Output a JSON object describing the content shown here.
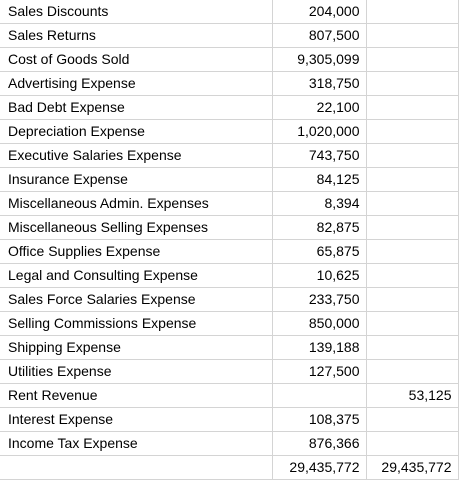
{
  "ledger": {
    "rows": [
      {
        "label": "Sales Discounts",
        "debit": "204,000",
        "credit": ""
      },
      {
        "label": "Sales Returns",
        "debit": "807,500",
        "credit": ""
      },
      {
        "label": "Cost of Goods Sold",
        "debit": "9,305,099",
        "credit": ""
      },
      {
        "label": "Advertising Expense",
        "debit": "318,750",
        "credit": ""
      },
      {
        "label": "Bad Debt Expense",
        "debit": "22,100",
        "credit": ""
      },
      {
        "label": "Depreciation Expense",
        "debit": "1,020,000",
        "credit": ""
      },
      {
        "label": "Executive Salaries Expense",
        "debit": "743,750",
        "credit": ""
      },
      {
        "label": "Insurance Expense",
        "debit": "84,125",
        "credit": ""
      },
      {
        "label": "Miscellaneous Admin. Expenses",
        "debit": "8,394",
        "credit": ""
      },
      {
        "label": "Miscellaneous Selling Expenses",
        "debit": "82,875",
        "credit": ""
      },
      {
        "label": "Office Supplies Expense",
        "debit": "65,875",
        "credit": ""
      },
      {
        "label": "Legal and Consulting Expense",
        "debit": "10,625",
        "credit": ""
      },
      {
        "label": "Sales Force Salaries Expense",
        "debit": "233,750",
        "credit": ""
      },
      {
        "label": "Selling Commissions Expense",
        "debit": "850,000",
        "credit": ""
      },
      {
        "label": "Shipping Expense",
        "debit": "139,188",
        "credit": ""
      },
      {
        "label": "Utilities Expense",
        "debit": "127,500",
        "credit": ""
      },
      {
        "label": "Rent Revenue",
        "debit": "",
        "credit": "53,125"
      },
      {
        "label": "Interest Expense",
        "debit": "108,375",
        "credit": ""
      },
      {
        "label": "Income Tax Expense",
        "debit": "876,366",
        "credit": ""
      }
    ],
    "totals": {
      "label": "",
      "debit": "29,435,772",
      "credit": "29,435,772"
    }
  }
}
